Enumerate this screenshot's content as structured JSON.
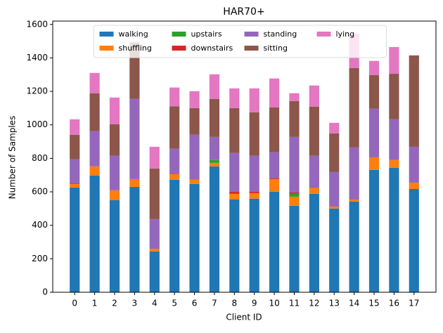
{
  "chart_data": {
    "type": "stacked-bar",
    "title": "HAR70+",
    "x_label": "Client ID",
    "y_label": "Number of Samples",
    "categories": [
      "0",
      "1",
      "2",
      "3",
      "4",
      "5",
      "6",
      "7",
      "8",
      "9",
      "10",
      "11",
      "12",
      "13",
      "14",
      "15",
      "16",
      "17"
    ],
    "series": [
      {
        "name": "walking",
        "color": "#1f77b4",
        "values": [
          626,
          697,
          550,
          630,
          244,
          672,
          647,
          752,
          554,
          559,
          601,
          517,
          588,
          500,
          542,
          731,
          743,
          617
        ]
      },
      {
        "name": "shuffling",
        "color": "#ff7f0e",
        "values": [
          20,
          55,
          59,
          46,
          16,
          34,
          25,
          21,
          34,
          33,
          75,
          54,
          34,
          12,
          12,
          75,
          47,
          38
        ]
      },
      {
        "name": "upstairs",
        "color": "#2ca02c",
        "values": [
          0,
          0,
          0,
          0,
          0,
          0,
          0,
          17,
          0,
          0,
          0,
          17,
          0,
          0,
          0,
          0,
          0,
          0
        ]
      },
      {
        "name": "downstairs",
        "color": "#d62728",
        "values": [
          4,
          0,
          0,
          0,
          0,
          3,
          0,
          0,
          12,
          8,
          4,
          8,
          0,
          0,
          0,
          0,
          0,
          0
        ]
      },
      {
        "name": "standing",
        "color": "#9467bd",
        "values": [
          144,
          210,
          206,
          479,
          177,
          148,
          269,
          138,
          232,
          215,
          156,
          332,
          193,
          206,
          311,
          290,
          243,
          214
        ]
      },
      {
        "name": "sitting",
        "color": "#8c564b",
        "values": [
          147,
          227,
          189,
          336,
          302,
          253,
          159,
          227,
          268,
          260,
          269,
          214,
          294,
          231,
          475,
          202,
          272,
          546
        ]
      },
      {
        "name": "lying",
        "color": "#e377c2",
        "values": [
          92,
          121,
          159,
          5,
          130,
          113,
          101,
          147,
          118,
          143,
          172,
          47,
          126,
          63,
          205,
          84,
          160,
          0
        ]
      }
    ],
    "ylim": [
      0,
      1620
    ],
    "yticks": [
      0,
      200,
      400,
      600,
      800,
      1000,
      1200,
      1400,
      1600
    ],
    "legend": "upper center"
  }
}
